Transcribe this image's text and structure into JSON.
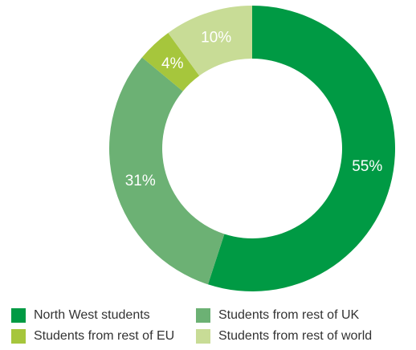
{
  "chart_data": {
    "type": "pie",
    "donut": true,
    "labels": [
      "North West students",
      "Students from rest of UK",
      "Students from rest of EU",
      "Students from rest of world"
    ],
    "values": [
      55,
      31,
      4,
      10
    ],
    "value_labels": [
      "55%",
      "31%",
      "4%",
      "10%"
    ],
    "colors": [
      "#009a44",
      "#6cb174",
      "#a6c63c",
      "#c8dc96"
    ],
    "label_color": "#ffffff",
    "legend_position": "bottom",
    "start_angle": "top",
    "direction": "clockwise"
  },
  "legend": {
    "items": [
      {
        "label": "North West students",
        "color": "#009a44"
      },
      {
        "label": "Students from rest of UK",
        "color": "#6cb174"
      },
      {
        "label": "Students from rest of EU",
        "color": "#a6c63c"
      },
      {
        "label": "Students from rest of world",
        "color": "#c8dc96"
      }
    ]
  }
}
